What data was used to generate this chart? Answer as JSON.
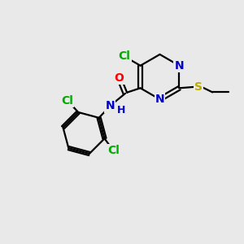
{
  "bg_color": "#e9e9e9",
  "bond_color": "#000000",
  "atom_colors": {
    "N": "#0000cc",
    "O": "#ff0000",
    "Cl": "#00aa00",
    "S": "#bbaa00",
    "C": "#000000",
    "H": "#0000cc"
  },
  "font_size": 10,
  "lw": 1.6
}
